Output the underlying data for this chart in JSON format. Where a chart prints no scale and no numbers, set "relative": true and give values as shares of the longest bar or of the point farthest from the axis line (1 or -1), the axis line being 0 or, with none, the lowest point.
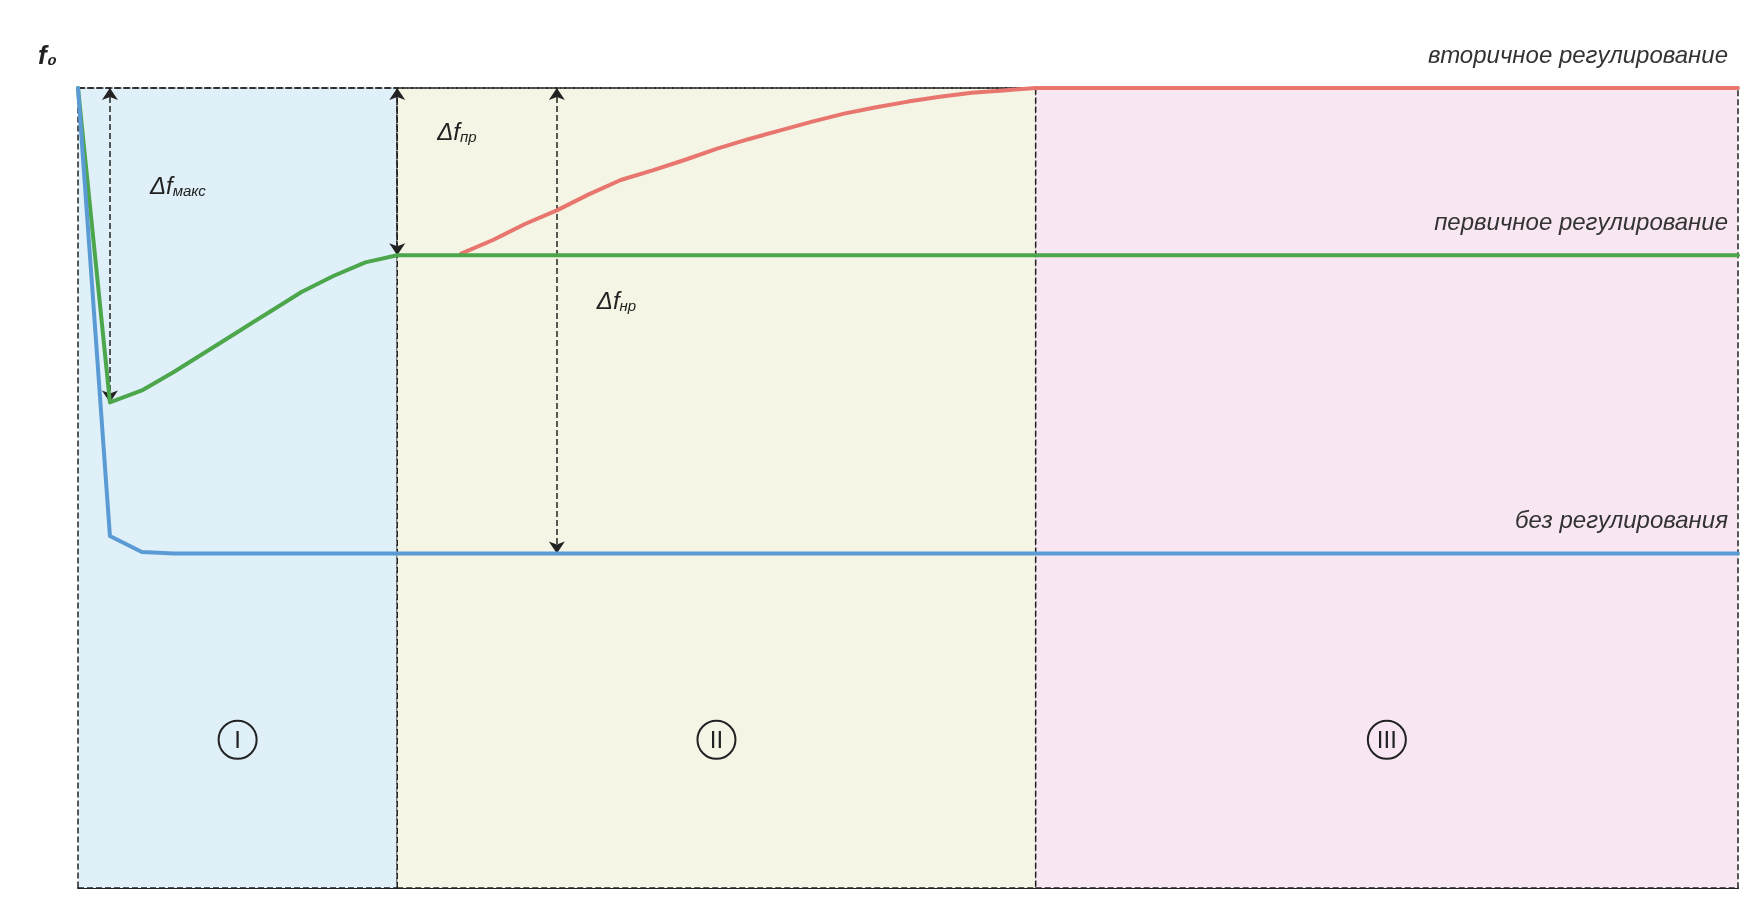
{
  "chart_data": {
    "type": "line",
    "relative": true,
    "legend": false,
    "grid": false,
    "marker": "none",
    "line_style": "solid",
    "categories": [
      null,
      null,
      null,
      null,
      null,
      null,
      null,
      null,
      null,
      null,
      null,
      null,
      null,
      null,
      null,
      null,
      null,
      null,
      null,
      null,
      null,
      null,
      null,
      null,
      null,
      null,
      null,
      null,
      null,
      null,
      null,
      null,
      null,
      null,
      null,
      null,
      null,
      null,
      null,
      null,
      null,
      null,
      null,
      null,
      null,
      null,
      null,
      null,
      null,
      null,
      null,
      null,
      null
    ],
    "series": [
      {
        "name": "вторичное регулирование",
        "color": "#e8766f",
        "values": [
          null,
          null,
          null,
          null,
          null,
          null,
          null,
          null,
          null,
          null,
          null,
          null,
          0.793,
          0.81,
          0.83,
          0.847,
          0.867,
          0.885,
          0.897,
          0.91,
          0.924,
          0.936,
          0.947,
          0.958,
          0.968,
          0.976,
          0.983,
          0.989,
          0.994,
          0.997,
          1,
          1,
          1,
          1,
          1,
          1,
          1,
          1,
          1,
          1,
          1,
          1,
          1,
          1,
          1,
          1,
          1,
          1,
          1,
          1,
          1,
          1,
          1
        ]
      },
      {
        "name": "первичное регулирование",
        "color": "#4ca64c",
        "values": [
          1,
          0.607,
          0.622,
          0.645,
          0.67,
          0.695,
          0.72,
          0.745,
          0.765,
          0.782,
          0.791,
          0.791,
          0.791,
          0.791,
          0.791,
          0.791,
          0.791,
          0.791,
          0.791,
          0.791,
          0.791,
          0.791,
          0.791,
          0.791,
          0.791,
          0.791,
          0.791,
          0.791,
          0.791,
          0.791,
          0.791,
          0.791,
          0.791,
          0.791,
          0.791,
          0.791,
          0.791,
          0.791,
          0.791,
          0.791,
          0.791,
          0.791,
          0.791,
          0.791,
          0.791,
          0.791,
          0.791,
          0.791,
          0.791,
          0.791,
          0.791,
          0.791,
          0.791
        ]
      },
      {
        "name": "без регулирования",
        "color": "#5b9bd5",
        "values": [
          1,
          0.44,
          0.42,
          0.418,
          0.418,
          0.418,
          0.418,
          0.418,
          0.418,
          0.418,
          0.418,
          0.418,
          0.418,
          0.418,
          0.418,
          0.418,
          0.418,
          0.418,
          0.418,
          0.418,
          0.418,
          0.418,
          0.418,
          0.418,
          0.418,
          0.418,
          0.418,
          0.418,
          0.418,
          0.418,
          0.418,
          0.418,
          0.418,
          0.418,
          0.418,
          0.418,
          0.418,
          0.418,
          0.418,
          0.418,
          0.418,
          0.418,
          0.418,
          0.418,
          0.418,
          0.418,
          0.418,
          0.418,
          0.418,
          0.418,
          0.418,
          0.418,
          0.418
        ]
      }
    ],
    "ref_lines": [
      {
        "axis": "y",
        "value": 1,
        "line_style": "dashed"
      }
    ],
    "annotations": [
      "f₀",
      "Δf$_{макс}$",
      "Δf$_{пр}$",
      "Δf$_{нр}$",
      "I",
      "II",
      "III"
    ]
  }
}
